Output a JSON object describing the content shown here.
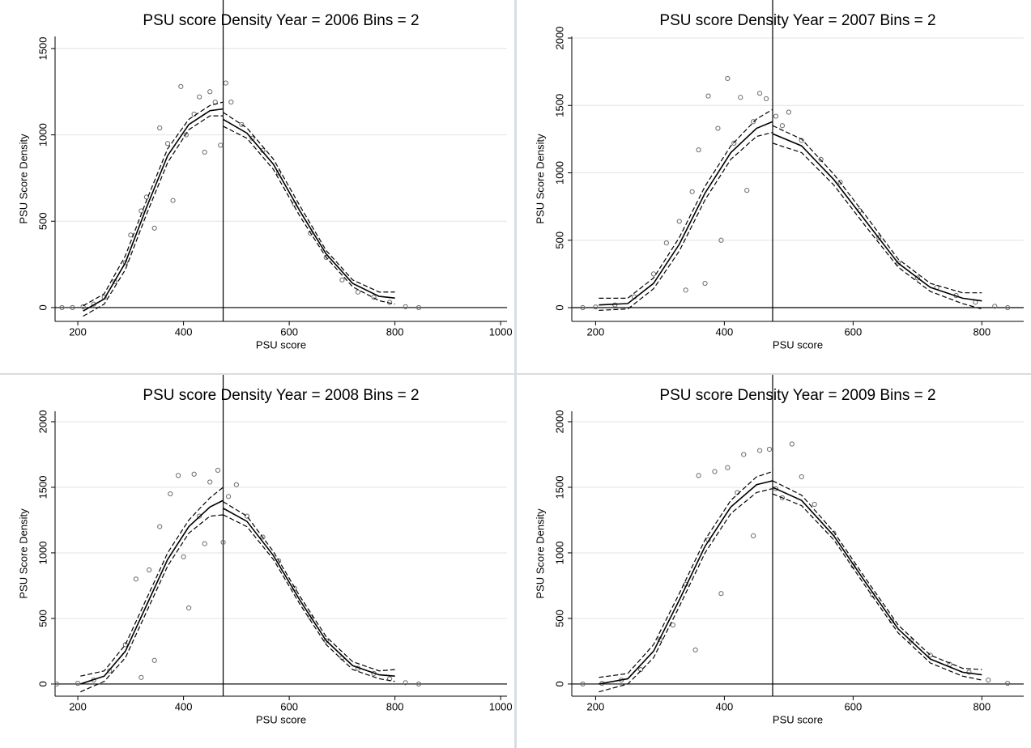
{
  "chart_data": [
    {
      "type": "scatter",
      "title": "PSU score Density Year = 2006 Bins = 2",
      "xlabel": "PSU score",
      "ylabel": "PSU Score Density",
      "xlim": [
        157,
        1012
      ],
      "ylim": [
        -80,
        1570
      ],
      "xticks": [
        200,
        400,
        600,
        800,
        1000
      ],
      "yticks": [
        0,
        500,
        1000,
        1500
      ],
      "grid": true,
      "hline": 0,
      "vline": 475,
      "x": [
        170,
        190,
        210,
        230,
        250,
        270,
        290,
        300,
        320,
        330,
        345,
        355,
        370,
        380,
        395,
        405,
        420,
        430,
        440,
        450,
        460,
        470,
        480,
        490,
        510,
        530,
        550,
        580,
        610,
        640,
        670,
        700,
        730,
        760,
        790,
        820,
        845
      ],
      "values": [
        0,
        0,
        5,
        20,
        60,
        150,
        260,
        420,
        560,
        640,
        460,
        1040,
        950,
        620,
        1280,
        1000,
        1120,
        1220,
        900,
        1250,
        1190,
        940,
        1300,
        1190,
        1060,
        980,
        910,
        780,
        600,
        430,
        290,
        160,
        90,
        60,
        30,
        5,
        0
      ],
      "lines": [
        {
          "x": [
            210,
            250,
            290,
            330,
            370,
            410,
            450,
            475
          ],
          "values": [
            -20,
            50,
            260,
            580,
            880,
            1060,
            1140,
            1150
          ],
          "dashed": false
        },
        {
          "x": [
            210,
            250,
            290,
            330,
            370,
            410,
            450,
            475
          ],
          "values": [
            -50,
            20,
            220,
            540,
            840,
            1030,
            1110,
            1110
          ],
          "dashed": true
        },
        {
          "x": [
            210,
            250,
            290,
            330,
            370,
            410,
            450,
            475
          ],
          "values": [
            10,
            80,
            300,
            620,
            920,
            1090,
            1170,
            1190
          ],
          "dashed": true
        },
        {
          "x": [
            475,
            520,
            570,
            620,
            670,
            720,
            770,
            800
          ],
          "values": [
            1090,
            1010,
            830,
            560,
            310,
            140,
            65,
            55
          ],
          "dashed": false
        },
        {
          "x": [
            475,
            520,
            570,
            620,
            670,
            720,
            770,
            800
          ],
          "values": [
            1050,
            980,
            800,
            530,
            290,
            120,
            40,
            20
          ],
          "dashed": true
        },
        {
          "x": [
            475,
            520,
            570,
            620,
            670,
            720,
            770,
            800
          ],
          "values": [
            1130,
            1040,
            860,
            590,
            330,
            160,
            90,
            90
          ],
          "dashed": true
        }
      ]
    },
    {
      "type": "scatter",
      "title": "PSU score Density Year = 2007 Bins = 2",
      "xlabel": "PSU score",
      "ylabel": "PSU Score Density",
      "xlim": [
        163,
        865
      ],
      "ylim": [
        -102,
        2012
      ],
      "xticks": [
        200,
        400,
        600,
        800
      ],
      "yticks": [
        0,
        500,
        1000,
        1500,
        2000
      ],
      "grid": true,
      "hline": 0,
      "vline": 475,
      "x": [
        180,
        200,
        230,
        260,
        290,
        310,
        330,
        340,
        350,
        360,
        370,
        375,
        390,
        395,
        405,
        415,
        425,
        435,
        445,
        455,
        465,
        480,
        490,
        500,
        520,
        550,
        580,
        610,
        640,
        670,
        700,
        730,
        760,
        790,
        820,
        840
      ],
      "values": [
        0,
        5,
        20,
        80,
        250,
        480,
        640,
        130,
        860,
        1170,
        180,
        1570,
        1330,
        500,
        1700,
        1220,
        1560,
        870,
        1380,
        1590,
        1550,
        1420,
        1350,
        1450,
        1240,
        1100,
        930,
        720,
        520,
        330,
        220,
        150,
        90,
        40,
        10,
        0
      ],
      "lines": [
        {
          "x": [
            205,
            250,
            290,
            330,
            370,
            410,
            450,
            475
          ],
          "values": [
            20,
            30,
            180,
            470,
            850,
            1150,
            1330,
            1380
          ],
          "dashed": false
        },
        {
          "x": [
            205,
            250,
            290,
            330,
            370,
            410,
            450,
            475
          ],
          "values": [
            -20,
            -10,
            140,
            420,
            800,
            1100,
            1270,
            1300
          ],
          "dashed": true
        },
        {
          "x": [
            205,
            250,
            290,
            330,
            370,
            410,
            450,
            475
          ],
          "values": [
            70,
            70,
            220,
            520,
            900,
            1200,
            1400,
            1470
          ],
          "dashed": true
        },
        {
          "x": [
            475,
            520,
            570,
            620,
            670,
            720,
            770,
            800
          ],
          "values": [
            1290,
            1200,
            950,
            640,
            330,
            150,
            70,
            50
          ],
          "dashed": false
        },
        {
          "x": [
            475,
            520,
            570,
            620,
            670,
            720,
            770,
            800
          ],
          "values": [
            1220,
            1150,
            910,
            600,
            300,
            120,
            30,
            -10
          ],
          "dashed": true
        },
        {
          "x": [
            475,
            520,
            570,
            620,
            670,
            720,
            770,
            800
          ],
          "values": [
            1350,
            1250,
            990,
            680,
            360,
            180,
            110,
            110
          ],
          "dashed": true
        }
      ]
    },
    {
      "type": "scatter",
      "title": "PSU score Density Year = 2008 Bins = 2",
      "xlabel": "PSU score",
      "ylabel": "PSU Score Density",
      "xlim": [
        157,
        1012
      ],
      "ylim": [
        -93,
        2080
      ],
      "xticks": [
        200,
        400,
        600,
        800,
        1000
      ],
      "yticks": [
        0,
        500,
        1000,
        1500,
        2000
      ],
      "grid": true,
      "hline": 0,
      "vline": 475,
      "x": [
        160,
        200,
        230,
        260,
        290,
        310,
        320,
        335,
        345,
        355,
        375,
        390,
        400,
        410,
        420,
        430,
        440,
        450,
        465,
        475,
        485,
        500,
        520,
        550,
        580,
        610,
        640,
        670,
        700,
        730,
        760,
        790,
        820,
        845
      ],
      "values": [
        0,
        5,
        30,
        100,
        300,
        800,
        50,
        870,
        180,
        1200,
        1450,
        1590,
        970,
        580,
        1600,
        1280,
        1070,
        1540,
        1630,
        1080,
        1430,
        1520,
        1280,
        1120,
        940,
        730,
        510,
        330,
        200,
        120,
        80,
        40,
        10,
        0
      ],
      "lines": [
        {
          "x": [
            205,
            250,
            290,
            330,
            370,
            410,
            450,
            475
          ],
          "values": [
            0,
            60,
            250,
            600,
            950,
            1200,
            1350,
            1400
          ],
          "dashed": false
        },
        {
          "x": [
            205,
            250,
            290,
            330,
            370,
            410,
            450,
            475
          ],
          "values": [
            -60,
            20,
            200,
            550,
            900,
            1150,
            1280,
            1290
          ],
          "dashed": true
        },
        {
          "x": [
            205,
            250,
            290,
            330,
            370,
            410,
            450,
            475
          ],
          "values": [
            60,
            100,
            300,
            650,
            1000,
            1250,
            1420,
            1500
          ],
          "dashed": true
        },
        {
          "x": [
            475,
            520,
            570,
            620,
            670,
            720,
            770,
            800
          ],
          "values": [
            1340,
            1240,
            980,
            640,
            330,
            140,
            70,
            60
          ],
          "dashed": false
        },
        {
          "x": [
            475,
            520,
            570,
            620,
            670,
            720,
            770,
            800
          ],
          "values": [
            1290,
            1200,
            950,
            610,
            300,
            110,
            40,
            20
          ],
          "dashed": true
        },
        {
          "x": [
            475,
            520,
            570,
            620,
            670,
            720,
            770,
            800
          ],
          "values": [
            1390,
            1280,
            1010,
            670,
            360,
            170,
            100,
            110
          ],
          "dashed": true
        }
      ]
    },
    {
      "type": "scatter",
      "title": "PSU score Density Year = 2009 Bins = 2",
      "xlabel": "PSU score",
      "ylabel": "PSU Score Density",
      "xlim": [
        163,
        865
      ],
      "ylim": [
        -93,
        2080
      ],
      "xticks": [
        200,
        400,
        600,
        800
      ],
      "yticks": [
        0,
        500,
        1000,
        1500,
        2000
      ],
      "grid": true,
      "hline": 0,
      "vline": 475,
      "x": [
        180,
        210,
        240,
        270,
        300,
        320,
        340,
        355,
        360,
        375,
        385,
        395,
        405,
        420,
        430,
        445,
        455,
        470,
        480,
        490,
        505,
        520,
        540,
        570,
        600,
        630,
        660,
        690,
        720,
        750,
        780,
        810,
        840
      ],
      "values": [
        0,
        5,
        30,
        110,
        340,
        450,
        760,
        260,
        1590,
        1100,
        1620,
        690,
        1650,
        1460,
        1750,
        1130,
        1780,
        1790,
        1490,
        1420,
        1830,
        1580,
        1370,
        1150,
        900,
        680,
        480,
        330,
        220,
        150,
        90,
        30,
        5
      ],
      "lines": [
        {
          "x": [
            205,
            250,
            290,
            330,
            370,
            410,
            450,
            475
          ],
          "values": [
            0,
            40,
            250,
            640,
            1050,
            1350,
            1520,
            1550
          ],
          "dashed": false
        },
        {
          "x": [
            205,
            250,
            290,
            330,
            370,
            410,
            450,
            475
          ],
          "values": [
            -60,
            0,
            200,
            590,
            1000,
            1300,
            1460,
            1490
          ],
          "dashed": true
        },
        {
          "x": [
            205,
            250,
            290,
            330,
            370,
            410,
            450,
            475
          ],
          "values": [
            50,
            80,
            300,
            690,
            1100,
            1400,
            1580,
            1620
          ],
          "dashed": true
        },
        {
          "x": [
            475,
            520,
            570,
            620,
            670,
            720,
            770,
            800
          ],
          "values": [
            1500,
            1400,
            1130,
            770,
            420,
            190,
            90,
            70
          ],
          "dashed": false
        },
        {
          "x": [
            475,
            520,
            570,
            620,
            670,
            720,
            770,
            800
          ],
          "values": [
            1450,
            1360,
            1100,
            740,
            390,
            160,
            60,
            30
          ],
          "dashed": true
        },
        {
          "x": [
            475,
            520,
            570,
            620,
            670,
            720,
            770,
            800
          ],
          "values": [
            1550,
            1440,
            1160,
            800,
            450,
            220,
            120,
            110
          ],
          "dashed": true
        }
      ]
    }
  ]
}
